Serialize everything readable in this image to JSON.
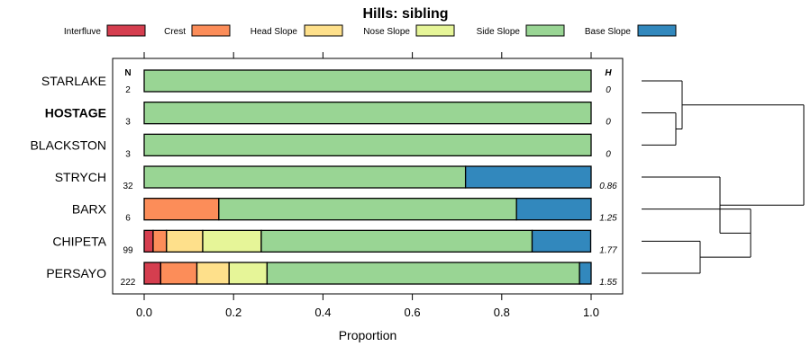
{
  "chart_data": {
    "type": "bar",
    "orientation": "horizontal",
    "stacked": true,
    "title": "Hills: sibling",
    "xlabel": "Proportion",
    "ylabel": "",
    "xlim": [
      0,
      1
    ],
    "x_ticks": [
      "0.0",
      "0.2",
      "0.4",
      "0.6",
      "0.8",
      "1.0"
    ],
    "x_tick_values": [
      0,
      0.2,
      0.4,
      0.6,
      0.8,
      1.0
    ],
    "n_header": "N",
    "h_header": "H",
    "legend": {
      "placement": "top",
      "entries": [
        {
          "name": "Interfluve",
          "color": "#D53E4F"
        },
        {
          "name": "Crest",
          "color": "#FC8D59"
        },
        {
          "name": "Head Slope",
          "color": "#FEE08B"
        },
        {
          "name": "Nose Slope",
          "color": "#E6F598"
        },
        {
          "name": "Side Slope",
          "color": "#99D594"
        },
        {
          "name": "Base Slope",
          "color": "#3288BD"
        }
      ]
    },
    "categories": [
      "STARLAKE",
      "HOSTAGE",
      "BLACKSTON",
      "STRYCH",
      "BARX",
      "CHIPETA",
      "PERSAYO"
    ],
    "bold_category": "HOSTAGE",
    "n": [
      "2",
      "3",
      "3",
      "32",
      "6",
      "99",
      "222"
    ],
    "h": [
      "0",
      "0",
      "0",
      "0.86",
      "1.25",
      "1.77",
      "1.55"
    ],
    "series": [
      {
        "name": "Interfluve",
        "values": [
          0,
          0,
          0,
          0,
          0,
          0.02,
          0.037
        ]
      },
      {
        "name": "Crest",
        "values": [
          0,
          0,
          0,
          0,
          0.167,
          0.03,
          0.081
        ]
      },
      {
        "name": "Head Slope",
        "values": [
          0,
          0,
          0,
          0,
          0,
          0.081,
          0.072
        ]
      },
      {
        "name": "Nose Slope",
        "values": [
          0,
          0,
          0,
          0,
          0,
          0.131,
          0.085
        ]
      },
      {
        "name": "Side Slope",
        "values": [
          1.0,
          1.0,
          1.0,
          0.719,
          0.666,
          0.606,
          0.699
        ]
      },
      {
        "name": "Base Slope",
        "values": [
          0,
          0,
          0,
          0.281,
          0.167,
          0.131,
          0.026
        ]
      }
    ],
    "dendrogram": {
      "merges": [
        [
          "HOSTAGE",
          "BLACKSTON"
        ],
        [
          "STARLAKE",
          "HOSTAGE+BLACKSTON"
        ],
        [
          "CHIPETA",
          "PERSAYO"
        ],
        [
          "BARX",
          "CHIPETA+PERSAYO"
        ],
        [
          "STRYCH",
          "BARX+CHIPETA+PERSAYO"
        ],
        [
          "STARLAKE+HOSTAGE+BLACKSTON",
          "STRYCH+BARX+CHIPETA+PERSAYO"
        ]
      ]
    }
  }
}
